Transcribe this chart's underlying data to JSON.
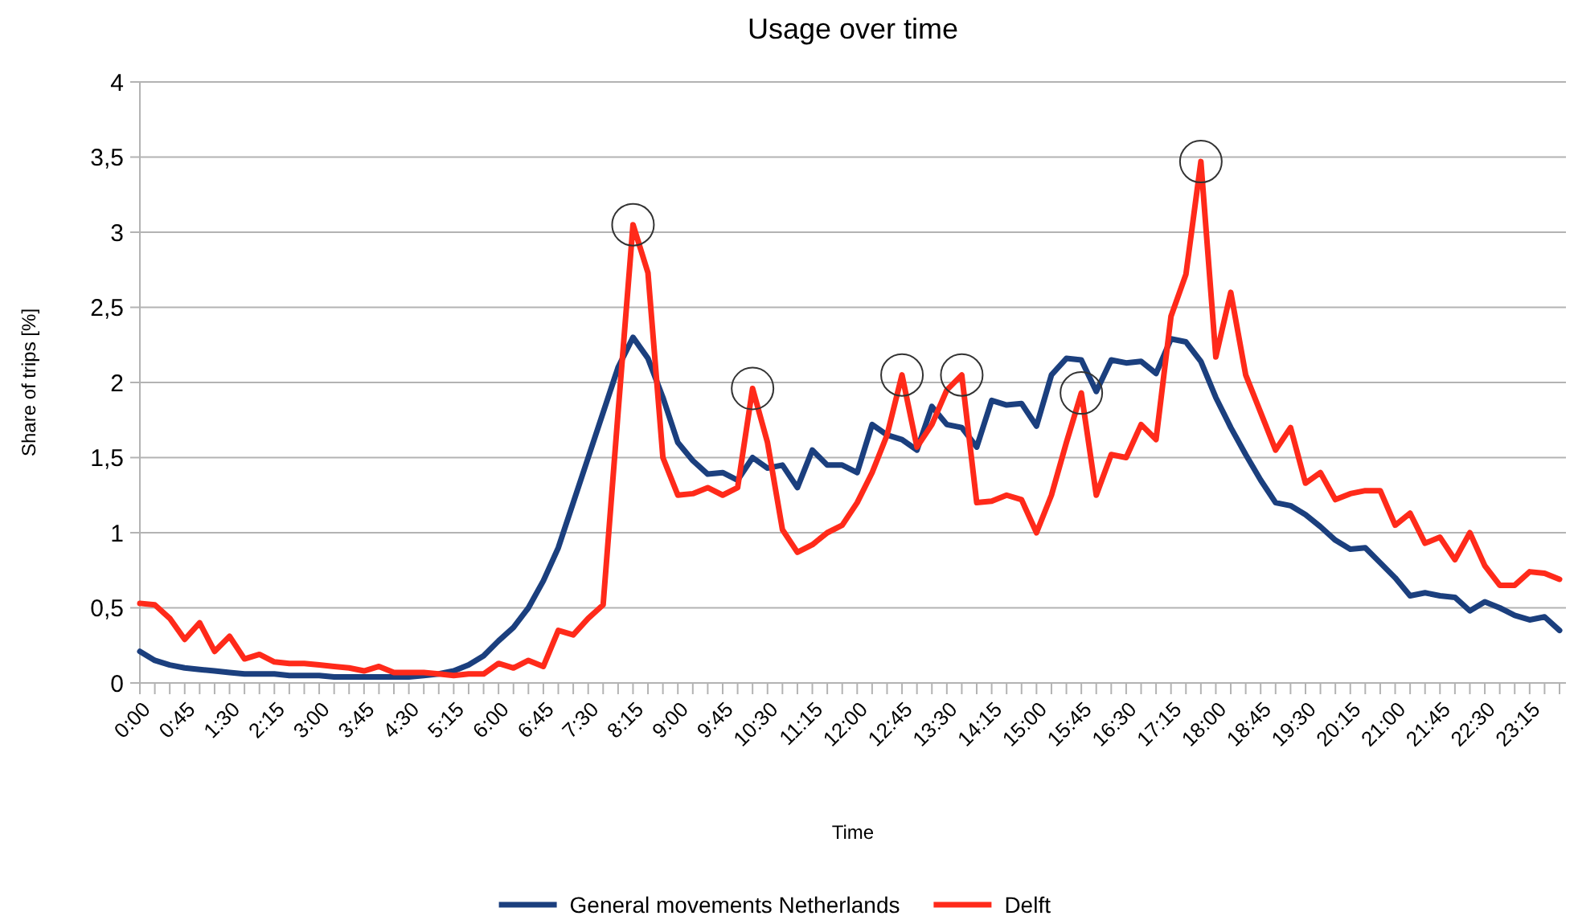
{
  "chart_data": {
    "type": "line",
    "title": "Usage over time",
    "xlabel": "Time",
    "ylabel": "Share of trips [%]",
    "x": [
      0,
      0.25,
      0.5,
      0.75,
      1,
      1.25,
      1.5,
      1.75,
      2,
      2.25,
      2.5,
      2.75,
      3,
      3.25,
      3.5,
      3.75,
      4,
      4.25,
      4.5,
      4.75,
      5,
      5.25,
      5.5,
      5.75,
      6,
      6.25,
      6.5,
      6.75,
      7,
      7.25,
      7.5,
      7.75,
      8,
      8.25,
      8.5,
      8.75,
      9,
      9.25,
      9.5,
      9.75,
      10,
      10.25,
      10.5,
      10.75,
      11,
      11.25,
      11.5,
      11.75,
      12,
      12.25,
      12.5,
      12.75,
      13,
      13.25,
      13.5,
      13.75,
      14,
      14.25,
      14.5,
      14.75,
      15,
      15.25,
      15.5,
      15.75,
      16,
      16.25,
      16.5,
      16.75,
      17,
      17.25,
      17.5,
      17.75,
      18,
      18.25,
      18.5,
      18.75,
      19,
      19.25,
      19.5,
      19.75,
      20,
      20.25,
      20.5,
      20.75,
      21,
      21.25,
      21.5,
      21.75,
      22,
      22.25,
      22.5,
      22.75,
      23,
      23.25,
      23.5,
      23.75
    ],
    "xlim": [
      0,
      23.75
    ],
    "xticks": [
      {
        "value": 0,
        "label": "0:00"
      },
      {
        "value": 0.25,
        "label": null
      },
      {
        "value": 0.5,
        "label": null
      },
      {
        "value": 0.75,
        "label": "0:45"
      },
      {
        "value": 1,
        "label": null
      },
      {
        "value": 1.25,
        "label": null
      },
      {
        "value": 1.5,
        "label": "1:30"
      },
      {
        "value": 1.75,
        "label": null
      },
      {
        "value": 2,
        "label": null
      },
      {
        "value": 2.25,
        "label": "2:15"
      },
      {
        "value": 2.5,
        "label": null
      },
      {
        "value": 2.75,
        "label": null
      },
      {
        "value": 3,
        "label": "3:00"
      },
      {
        "value": 3.25,
        "label": null
      },
      {
        "value": 3.5,
        "label": null
      },
      {
        "value": 3.75,
        "label": "3:45"
      },
      {
        "value": 4,
        "label": null
      },
      {
        "value": 4.25,
        "label": null
      },
      {
        "value": 4.5,
        "label": "4:30"
      },
      {
        "value": 4.75,
        "label": null
      },
      {
        "value": 5,
        "label": null
      },
      {
        "value": 5.25,
        "label": "5:15"
      },
      {
        "value": 5.5,
        "label": null
      },
      {
        "value": 5.75,
        "label": null
      },
      {
        "value": 6,
        "label": "6:00"
      },
      {
        "value": 6.25,
        "label": null
      },
      {
        "value": 6.5,
        "label": null
      },
      {
        "value": 6.75,
        "label": "6:45"
      },
      {
        "value": 7,
        "label": null
      },
      {
        "value": 7.25,
        "label": null
      },
      {
        "value": 7.5,
        "label": "7:30"
      },
      {
        "value": 7.75,
        "label": null
      },
      {
        "value": 8,
        "label": null
      },
      {
        "value": 8.25,
        "label": "8:15"
      },
      {
        "value": 8.5,
        "label": null
      },
      {
        "value": 8.75,
        "label": null
      },
      {
        "value": 9,
        "label": "9:00"
      },
      {
        "value": 9.25,
        "label": null
      },
      {
        "value": 9.5,
        "label": null
      },
      {
        "value": 9.75,
        "label": "9:45"
      },
      {
        "value": 10,
        "label": null
      },
      {
        "value": 10.25,
        "label": null
      },
      {
        "value": 10.5,
        "label": "10:30"
      },
      {
        "value": 10.75,
        "label": null
      },
      {
        "value": 11,
        "label": null
      },
      {
        "value": 11.25,
        "label": "11:15"
      },
      {
        "value": 11.5,
        "label": null
      },
      {
        "value": 11.75,
        "label": null
      },
      {
        "value": 12,
        "label": "12:00"
      },
      {
        "value": 12.25,
        "label": null
      },
      {
        "value": 12.5,
        "label": null
      },
      {
        "value": 12.75,
        "label": "12:45"
      },
      {
        "value": 13,
        "label": null
      },
      {
        "value": 13.25,
        "label": null
      },
      {
        "value": 13.5,
        "label": "13:30"
      },
      {
        "value": 13.75,
        "label": null
      },
      {
        "value": 14,
        "label": null
      },
      {
        "value": 14.25,
        "label": "14:15"
      },
      {
        "value": 14.5,
        "label": null
      },
      {
        "value": 14.75,
        "label": null
      },
      {
        "value": 15,
        "label": "15:00"
      },
      {
        "value": 15.25,
        "label": null
      },
      {
        "value": 15.5,
        "label": null
      },
      {
        "value": 15.75,
        "label": "15:45"
      },
      {
        "value": 16,
        "label": null
      },
      {
        "value": 16.25,
        "label": null
      },
      {
        "value": 16.5,
        "label": "16:30"
      },
      {
        "value": 16.75,
        "label": null
      },
      {
        "value": 17,
        "label": null
      },
      {
        "value": 17.25,
        "label": "17:15"
      },
      {
        "value": 17.5,
        "label": null
      },
      {
        "value": 17.75,
        "label": null
      },
      {
        "value": 18,
        "label": "18:00"
      },
      {
        "value": 18.25,
        "label": null
      },
      {
        "value": 18.5,
        "label": null
      },
      {
        "value": 18.75,
        "label": "18:45"
      },
      {
        "value": 19,
        "label": null
      },
      {
        "value": 19.25,
        "label": null
      },
      {
        "value": 19.5,
        "label": "19:30"
      },
      {
        "value": 19.75,
        "label": null
      },
      {
        "value": 20,
        "label": null
      },
      {
        "value": 20.25,
        "label": "20:15"
      },
      {
        "value": 20.5,
        "label": null
      },
      {
        "value": 20.75,
        "label": null
      },
      {
        "value": 21,
        "label": "21:00"
      },
      {
        "value": 21.25,
        "label": null
      },
      {
        "value": 21.5,
        "label": null
      },
      {
        "value": 21.75,
        "label": "21:45"
      },
      {
        "value": 22,
        "label": null
      },
      {
        "value": 22.25,
        "label": null
      },
      {
        "value": 22.5,
        "label": "22:30"
      },
      {
        "value": 22.75,
        "label": null
      },
      {
        "value": 23,
        "label": null
      },
      {
        "value": 23.25,
        "label": "23:15"
      },
      {
        "value": 23.5,
        "label": null
      },
      {
        "value": 23.75,
        "label": null
      }
    ],
    "series": [
      {
        "name": "General movements Netherlands",
        "color": "#1b3f7e",
        "values": [
          0.21,
          0.15,
          0.12,
          0.1,
          0.09,
          0.08,
          0.07,
          0.06,
          0.06,
          0.06,
          0.05,
          0.05,
          0.05,
          0.04,
          0.04,
          0.04,
          0.04,
          0.04,
          0.04,
          0.05,
          0.06,
          0.08,
          0.12,
          0.18,
          0.28,
          0.37,
          0.5,
          0.68,
          0.9,
          1.2,
          1.5,
          1.8,
          2.1,
          2.3,
          2.16,
          1.9,
          1.6,
          1.48,
          1.39,
          1.4,
          1.35,
          1.5,
          1.43,
          1.45,
          1.3,
          1.55,
          1.45,
          1.45,
          1.4,
          1.72,
          1.65,
          1.62,
          1.55,
          1.84,
          1.72,
          1.7,
          1.57,
          1.88,
          1.85,
          1.86,
          1.71,
          2.05,
          2.16,
          2.15,
          1.94,
          2.15,
          2.13,
          2.14,
          2.06,
          2.29,
          2.27,
          2.14,
          1.9,
          1.7,
          1.52,
          1.35,
          1.2,
          1.18,
          1.12,
          1.04,
          0.95,
          0.89,
          0.9,
          0.8,
          0.7,
          0.58,
          0.6,
          0.58,
          0.57,
          0.48,
          0.54,
          0.5,
          0.45,
          0.42,
          0.44,
          0.35
        ]
      },
      {
        "name": "Delft",
        "color": "#ff2a1a",
        "values": [
          0.53,
          0.52,
          0.43,
          0.29,
          0.4,
          0.21,
          0.31,
          0.16,
          0.19,
          0.14,
          0.13,
          0.13,
          0.12,
          0.11,
          0.1,
          0.08,
          0.11,
          0.07,
          0.07,
          0.07,
          0.06,
          0.05,
          0.06,
          0.06,
          0.13,
          0.1,
          0.15,
          0.11,
          0.35,
          0.32,
          0.43,
          0.52,
          1.8,
          3.05,
          2.73,
          1.5,
          1.25,
          1.26,
          1.3,
          1.25,
          1.3,
          1.96,
          1.6,
          1.02,
          0.87,
          0.92,
          1.0,
          1.05,
          1.2,
          1.4,
          1.65,
          2.05,
          1.57,
          1.72,
          1.95,
          2.05,
          1.2,
          1.21,
          1.25,
          1.22,
          1.0,
          1.25,
          1.6,
          1.93,
          1.25,
          1.52,
          1.5,
          1.72,
          1.62,
          2.44,
          2.72,
          3.47,
          2.17,
          2.6,
          2.05,
          1.8,
          1.55,
          1.7,
          1.33,
          1.4,
          1.22,
          1.26,
          1.28,
          1.28,
          1.05,
          1.13,
          0.93,
          0.97,
          0.82,
          1.0,
          0.78,
          0.65,
          0.65,
          0.74,
          0.73,
          0.69
        ]
      }
    ],
    "ylim": [
      0,
      4
    ],
    "yticks": [
      0,
      {
        "value": 0.5,
        "label": "0,5"
      },
      1,
      {
        "value": 1.5,
        "label": "1,5"
      },
      2,
      {
        "value": 2.5,
        "label": "2,5"
      },
      3,
      {
        "value": 3.5,
        "label": "3,5"
      },
      4
    ],
    "grid": "y",
    "legend": "bottom",
    "marker": "none",
    "line_style": "solid"
  }
}
